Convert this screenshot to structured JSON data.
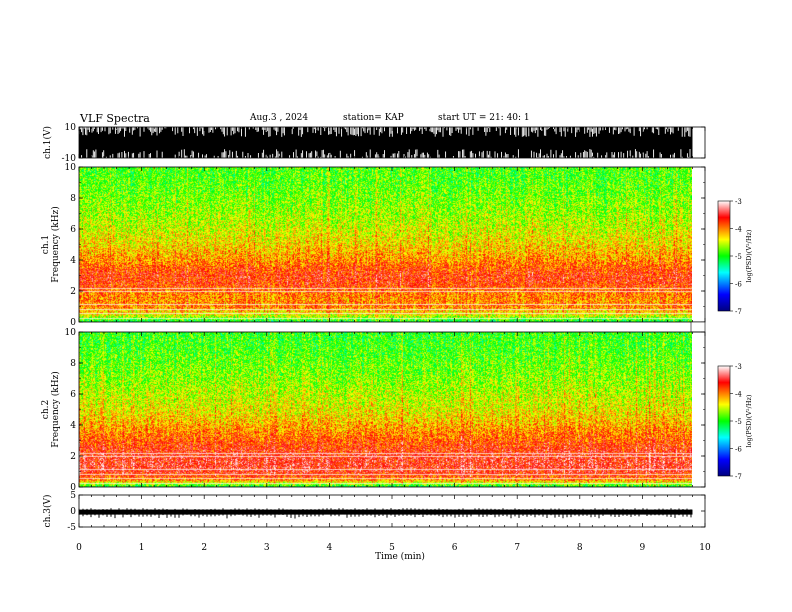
{
  "header": {
    "title": "VLF Spectra",
    "date": "Aug.3 , 2024",
    "station": "station= KAP",
    "start": "start UT = 21: 40: 1"
  },
  "chart_data": [
    {
      "type": "line",
      "panel": "ch1-waveform",
      "ylabel": "ch.1(V)",
      "ylim": [
        -10,
        10
      ],
      "y_ticks": [
        "10",
        "-10"
      ],
      "xlim": [
        0,
        10
      ],
      "data_x_end": 9.8,
      "description_of_signal": "saturated broadband waveform"
    },
    {
      "type": "heatmap",
      "panel": "ch1-spectrogram",
      "ylabel_lines": [
        "ch.1",
        "Frequency (kHz)"
      ],
      "ylim": [
        0,
        10
      ],
      "y_ticks": [
        "0",
        "2",
        "4",
        "6",
        "8",
        "10"
      ],
      "xlim": [
        0,
        10
      ],
      "data_x_end": 9.8,
      "colorbar": {
        "label": "log(PSD)(V²/Hz)",
        "range": [
          -7,
          -3
        ],
        "ticks": [
          "-3",
          "-4",
          "-5",
          "-6",
          "-7"
        ],
        "colors": [
          "#00007f",
          "#0000ff",
          "#00ffff",
          "#00ff00",
          "#ffff00",
          "#ff0000",
          "#ffffff"
        ]
      },
      "profile_freq_khz": [
        0,
        0.5,
        1,
        1.5,
        2,
        2.5,
        3,
        3.5,
        4,
        5,
        6,
        7,
        8,
        9,
        10
      ],
      "profile_log_psd": [
        -5.2,
        -4.4,
        -4.0,
        -4.05,
        -3.95,
        -3.75,
        -3.7,
        -3.85,
        -4.05,
        -4.3,
        -4.5,
        -4.65,
        -4.75,
        -4.85,
        -4.9
      ]
    },
    {
      "type": "heatmap",
      "panel": "ch2-spectrogram",
      "ylabel_lines": [
        "ch.2",
        "Frequency (kHz)"
      ],
      "ylim": [
        0,
        10
      ],
      "y_ticks": [
        "0",
        "2",
        "4",
        "6",
        "8",
        "10"
      ],
      "xlim": [
        0,
        10
      ],
      "data_x_end": 9.8,
      "colorbar": {
        "label": "log(PSD)(V²/Hz)",
        "range": [
          -7,
          -3
        ],
        "ticks": [
          "-3",
          "-4",
          "-5",
          "-6",
          "-7"
        ],
        "colors": [
          "#00007f",
          "#0000ff",
          "#00ffff",
          "#00ff00",
          "#ffff00",
          "#ff0000",
          "#ffffff"
        ]
      },
      "profile_freq_khz": [
        0,
        0.5,
        1,
        1.5,
        2,
        2.5,
        3,
        3.5,
        4,
        5,
        6,
        7,
        8,
        9,
        10
      ],
      "profile_log_psd": [
        -5.2,
        -4.0,
        -3.6,
        -3.55,
        -3.6,
        -3.7,
        -3.85,
        -4.0,
        -4.15,
        -4.4,
        -4.55,
        -4.7,
        -4.8,
        -4.9,
        -4.95
      ]
    },
    {
      "type": "line",
      "panel": "ch3-waveform",
      "ylabel": "ch.3(V)",
      "ylim": [
        -5,
        5
      ],
      "y_ticks": [
        "5",
        "0",
        "-5"
      ],
      "xlim": [
        0,
        10
      ],
      "data_x_end": 9.8,
      "baseline_v": -0.5,
      "xlabel": "Time (min)",
      "x_ticks": [
        "0",
        "1",
        "2",
        "3",
        "4",
        "5",
        "6",
        "7",
        "8",
        "9",
        "10"
      ]
    }
  ]
}
